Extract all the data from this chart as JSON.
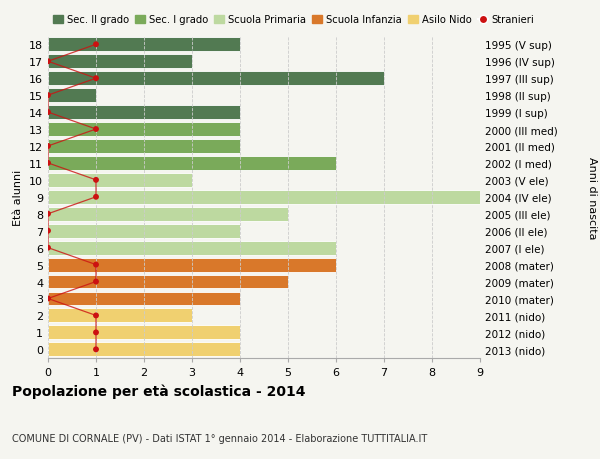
{
  "ages": [
    18,
    17,
    16,
    15,
    14,
    13,
    12,
    11,
    10,
    9,
    8,
    7,
    6,
    5,
    4,
    3,
    2,
    1,
    0
  ],
  "birth_years": [
    "1995 (V sup)",
    "1996 (IV sup)",
    "1997 (III sup)",
    "1998 (II sup)",
    "1999 (I sup)",
    "2000 (III med)",
    "2001 (II med)",
    "2002 (I med)",
    "2003 (V ele)",
    "2004 (IV ele)",
    "2005 (III ele)",
    "2006 (II ele)",
    "2007 (I ele)",
    "2008 (mater)",
    "2009 (mater)",
    "2010 (mater)",
    "2011 (nido)",
    "2012 (nido)",
    "2013 (nido)"
  ],
  "bar_values": [
    4,
    3,
    7,
    1,
    4,
    4,
    4,
    6,
    3,
    9,
    5,
    4,
    6,
    6,
    5,
    4,
    3,
    4,
    4
  ],
  "bar_colors": [
    "#527a52",
    "#527a52",
    "#527a52",
    "#527a52",
    "#527a52",
    "#7aaa5a",
    "#7aaa5a",
    "#7aaa5a",
    "#bdd9a0",
    "#bdd9a0",
    "#bdd9a0",
    "#bdd9a0",
    "#bdd9a0",
    "#d9782a",
    "#d9782a",
    "#d9782a",
    "#f0d070",
    "#f0d070",
    "#f0d070"
  ],
  "stranieri_x": [
    1,
    0,
    1,
    0,
    0,
    1,
    0,
    0,
    1,
    1,
    0,
    0,
    0,
    1,
    1,
    0,
    1,
    1,
    1
  ],
  "legend_labels": [
    "Sec. II grado",
    "Sec. I grado",
    "Scuola Primaria",
    "Scuola Infanzia",
    "Asilo Nido",
    "Stranieri"
  ],
  "legend_colors": [
    "#527a52",
    "#7aaa5a",
    "#bdd9a0",
    "#d9782a",
    "#f0d070",
    "#cc1111"
  ],
  "title": "Popolazione per età scolastica - 2014",
  "subtitle": "COMUNE DI CORNALE (PV) - Dati ISTAT 1° gennaio 2014 - Elaborazione TUTTITALIA.IT",
  "ylabel_left": "Età alunni",
  "ylabel_right": "Anni di nascita",
  "xlim": [
    0,
    9
  ],
  "bg_color": "#f5f5f0",
  "grid_color": "#cccccc",
  "bar_height": 0.82
}
